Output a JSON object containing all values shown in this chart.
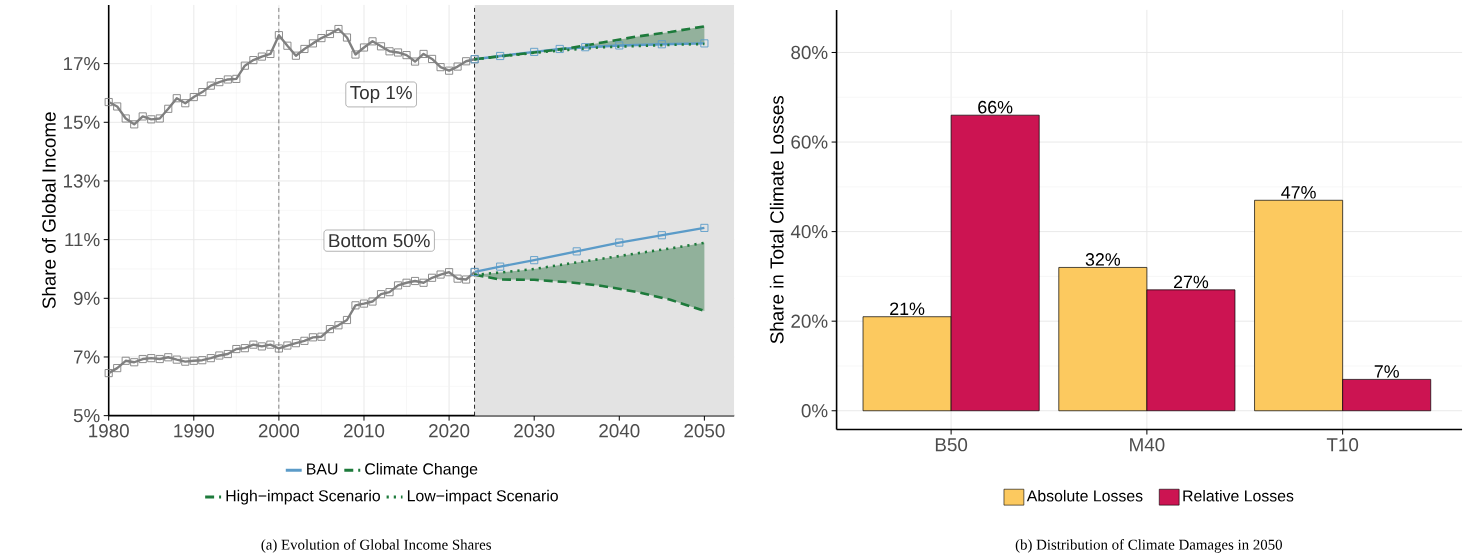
{
  "chart_data": [
    {
      "type": "line",
      "ylabel": "Share of Global Income",
      "xlim": [
        1980,
        2053.5
      ],
      "ylim": [
        5,
        19
      ],
      "xticks": [
        1980,
        1990,
        2000,
        2010,
        2020,
        2030,
        2040,
        2050
      ],
      "yticks": [
        {
          "value": 5,
          "label": "5%"
        },
        {
          "value": 7,
          "label": "7%"
        },
        {
          "value": 9,
          "label": "9%"
        },
        {
          "value": 11,
          "label": "11%"
        },
        {
          "value": 13,
          "label": "13%"
        },
        {
          "value": 15,
          "label": "15%"
        },
        {
          "value": 17,
          "label": "17%"
        }
      ],
      "grid": true,
      "legend": "bottom",
      "ref_lines": [
        {
          "axis": "x",
          "value": 2000,
          "line_style": "dashed"
        },
        {
          "axis": "x",
          "value": 2023,
          "line_style": "dashed"
        }
      ],
      "bands": [
        {
          "axis": "x",
          "from": 2023,
          "to": 2053.5,
          "color": "#e3e3e3"
        }
      ],
      "annotations": [
        "Top 1%",
        "Bottom 50%",
        "(a) Evolution of Global Income Shares"
      ],
      "series": [
        {
          "color": "#808080",
          "marker": "square",
          "x": [
            1980,
            1981,
            1982,
            1983,
            1984,
            1985,
            1986,
            1987,
            1988,
            1989,
            1990,
            1991,
            1992,
            1993,
            1994,
            1995,
            1996,
            1997,
            1998,
            1999,
            2000,
            2001,
            2002,
            2003,
            2004,
            2005,
            2006,
            2007,
            2008,
            2009,
            2010,
            2011,
            2012,
            2013,
            2014,
            2015,
            2016,
            2017,
            2018,
            2019,
            2020,
            2021,
            2022,
            2023
          ],
          "values": [
            15.69,
            15.54,
            15.13,
            14.93,
            15.2,
            15.1,
            15.13,
            15.46,
            15.82,
            15.65,
            15.86,
            16.03,
            16.25,
            16.37,
            16.46,
            16.48,
            16.93,
            17.12,
            17.24,
            17.33,
            17.97,
            17.61,
            17.27,
            17.5,
            17.69,
            17.87,
            18.01,
            18.18,
            17.89,
            17.31,
            17.55,
            17.76,
            17.59,
            17.42,
            17.38,
            17.29,
            17.07,
            17.33,
            17.16,
            16.88,
            16.76,
            16.9,
            17.08,
            17.15
          ]
        },
        {
          "color": "#808080",
          "marker": "square",
          "x": [
            1980,
            1981,
            1982,
            1983,
            1984,
            1985,
            1986,
            1987,
            1988,
            1989,
            1990,
            1991,
            1992,
            1993,
            1994,
            1995,
            1996,
            1997,
            1998,
            1999,
            2000,
            2001,
            2002,
            2003,
            2004,
            2005,
            2006,
            2007,
            2008,
            2009,
            2010,
            2011,
            2012,
            2013,
            2014,
            2015,
            2016,
            2017,
            2018,
            2019,
            2020,
            2021,
            2022,
            2023
          ],
          "values": [
            6.45,
            6.62,
            6.87,
            6.82,
            6.93,
            6.96,
            6.93,
            6.99,
            6.91,
            6.84,
            6.87,
            6.89,
            6.96,
            7.05,
            7.1,
            7.27,
            7.3,
            7.42,
            7.36,
            7.42,
            7.29,
            7.39,
            7.47,
            7.55,
            7.67,
            7.69,
            7.95,
            8.08,
            8.26,
            8.76,
            8.82,
            8.89,
            9.14,
            9.21,
            9.44,
            9.53,
            9.59,
            9.53,
            9.7,
            9.81,
            9.89,
            9.67,
            9.64,
            9.89
          ]
        },
        {
          "name": "BAU",
          "color": "#5b9bc8",
          "marker": "square",
          "x": [
            2023,
            2026,
            2030,
            2033,
            2036,
            2040,
            2045,
            2050
          ],
          "values": [
            17.15,
            17.26,
            17.4,
            17.5,
            17.56,
            17.62,
            17.66,
            17.69
          ]
        },
        {
          "color": "#5b9bc8",
          "marker": "square",
          "x": [
            2023,
            2026,
            2030,
            2035,
            2040,
            2045,
            2050
          ],
          "values": [
            9.9,
            10.08,
            10.3,
            10.6,
            10.9,
            11.15,
            11.4
          ]
        },
        {
          "name": "Climate Change",
          "color": "#1d7a3b",
          "line_style": "dashed",
          "x": [
            2023,
            2026,
            2030,
            2034,
            2038,
            2042,
            2046,
            2050
          ],
          "values": [
            17.15,
            17.25,
            17.38,
            17.52,
            17.72,
            17.92,
            18.08,
            18.27
          ],
          "lower": [
            17.15,
            17.24,
            17.37,
            17.47,
            17.56,
            17.6,
            17.64,
            17.67
          ],
          "upper": [
            17.15,
            17.25,
            17.38,
            17.52,
            17.72,
            17.92,
            18.08,
            18.27
          ]
        },
        {
          "color": "#1d7a3b",
          "line_style": "dotted",
          "x": [
            2023,
            2026,
            2030,
            2034,
            2038,
            2042,
            2046,
            2050
          ],
          "values": [
            17.15,
            17.24,
            17.37,
            17.47,
            17.56,
            17.6,
            17.64,
            17.67
          ]
        },
        {
          "name": "High−impact Scenario",
          "color": "#1d7a3b",
          "line_style": "dashed",
          "x": [
            2023,
            2026,
            2030,
            2034,
            2038,
            2042,
            2046,
            2050
          ],
          "values": [
            9.8,
            9.64,
            9.63,
            9.55,
            9.42,
            9.22,
            8.95,
            8.57
          ]
        },
        {
          "name": "Low−impact Scenario",
          "color": "#1d7a3b",
          "line_style": "dotted",
          "x": [
            2023,
            2026,
            2030,
            2034,
            2038,
            2042,
            2046,
            2050
          ],
          "values": [
            9.8,
            9.88,
            10.0,
            10.18,
            10.35,
            10.53,
            10.7,
            10.89
          ],
          "lower": [
            9.8,
            9.64,
            9.63,
            9.55,
            9.42,
            9.22,
            8.95,
            8.57
          ],
          "upper": [
            9.8,
            9.88,
            10.0,
            10.18,
            10.35,
            10.53,
            10.7,
            10.89
          ]
        }
      ]
    },
    {
      "type": "bar",
      "categories": [
        "B50",
        "M40",
        "T10"
      ],
      "ylabel": "Share in Total Climate Losses",
      "ylim": [
        -4.2,
        89.5
      ],
      "yticks": [
        {
          "value": 0,
          "label": "0%"
        },
        {
          "value": 20,
          "label": "20%"
        },
        {
          "value": 40,
          "label": "40%"
        },
        {
          "value": 60,
          "label": "60%"
        },
        {
          "value": 80,
          "label": "80%"
        }
      ],
      "grid": true,
      "legend": "bottom",
      "annotations": [
        "(b) Distribution of Climate Damages in 2050"
      ],
      "series": [
        {
          "name": "Absolute Losses",
          "color": "#fcc95f",
          "values": [
            21,
            32,
            47
          ],
          "value_labels": [
            "21%",
            "32%",
            "47%"
          ]
        },
        {
          "name": "Relative Losses",
          "color": "#cc1452",
          "values": [
            66,
            27,
            7
          ],
          "value_labels": [
            "66%",
            "27%",
            "7%"
          ]
        }
      ]
    }
  ]
}
